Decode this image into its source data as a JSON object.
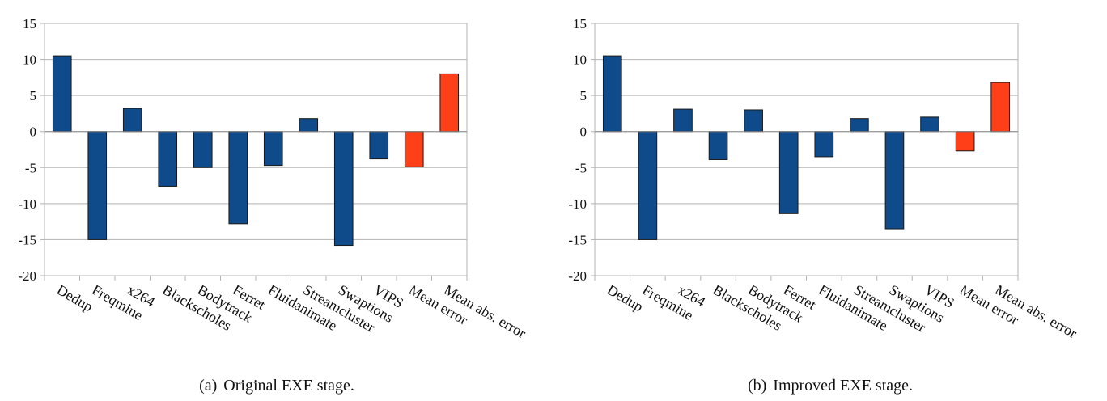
{
  "chart_data": [
    {
      "type": "bar",
      "caption_label": "(a)",
      "caption": "Original EXE stage.",
      "categories": [
        "Dedup",
        "Freqmine",
        "x264",
        "Blackscholes",
        "Bodytrack",
        "Ferret",
        "Fluidanimate",
        "Streamcluster",
        "Swaptions",
        "VIPS",
        "Mean error",
        "Mean abs. error"
      ],
      "values": [
        10.5,
        -15.0,
        3.2,
        -7.6,
        -5.0,
        -12.8,
        -4.7,
        1.8,
        -15.8,
        -3.8,
        -4.9,
        8.0
      ],
      "colors": [
        "#0f4a8a",
        "#0f4a8a",
        "#0f4a8a",
        "#0f4a8a",
        "#0f4a8a",
        "#0f4a8a",
        "#0f4a8a",
        "#0f4a8a",
        "#0f4a8a",
        "#0f4a8a",
        "#ff3f17",
        "#ff3f17"
      ],
      "ylim": [
        -20,
        15
      ],
      "yticks": [
        15,
        10,
        5,
        0,
        -5,
        -10,
        -15,
        -20
      ],
      "grid": true,
      "xlabel": "",
      "ylabel": ""
    },
    {
      "type": "bar",
      "caption_label": "(b)",
      "caption": "Improved EXE stage.",
      "categories": [
        "Dedup",
        "Freqmine",
        "x264",
        "Blackscholes",
        "Bodytrack",
        "Ferret",
        "Fluidanimate",
        "Streamcluster",
        "Swaptions",
        "VIPS",
        "Mean error",
        "Mean abs. error"
      ],
      "values": [
        10.5,
        -15.0,
        3.1,
        -3.9,
        3.0,
        -11.4,
        -3.5,
        1.8,
        -13.5,
        2.0,
        -2.7,
        6.8
      ],
      "colors": [
        "#0f4a8a",
        "#0f4a8a",
        "#0f4a8a",
        "#0f4a8a",
        "#0f4a8a",
        "#0f4a8a",
        "#0f4a8a",
        "#0f4a8a",
        "#0f4a8a",
        "#0f4a8a",
        "#ff3f17",
        "#ff3f17"
      ],
      "ylim": [
        -20,
        15
      ],
      "yticks": [
        15,
        10,
        5,
        0,
        -5,
        -10,
        -15,
        -20
      ],
      "grid": true,
      "xlabel": "",
      "ylabel": ""
    }
  ]
}
